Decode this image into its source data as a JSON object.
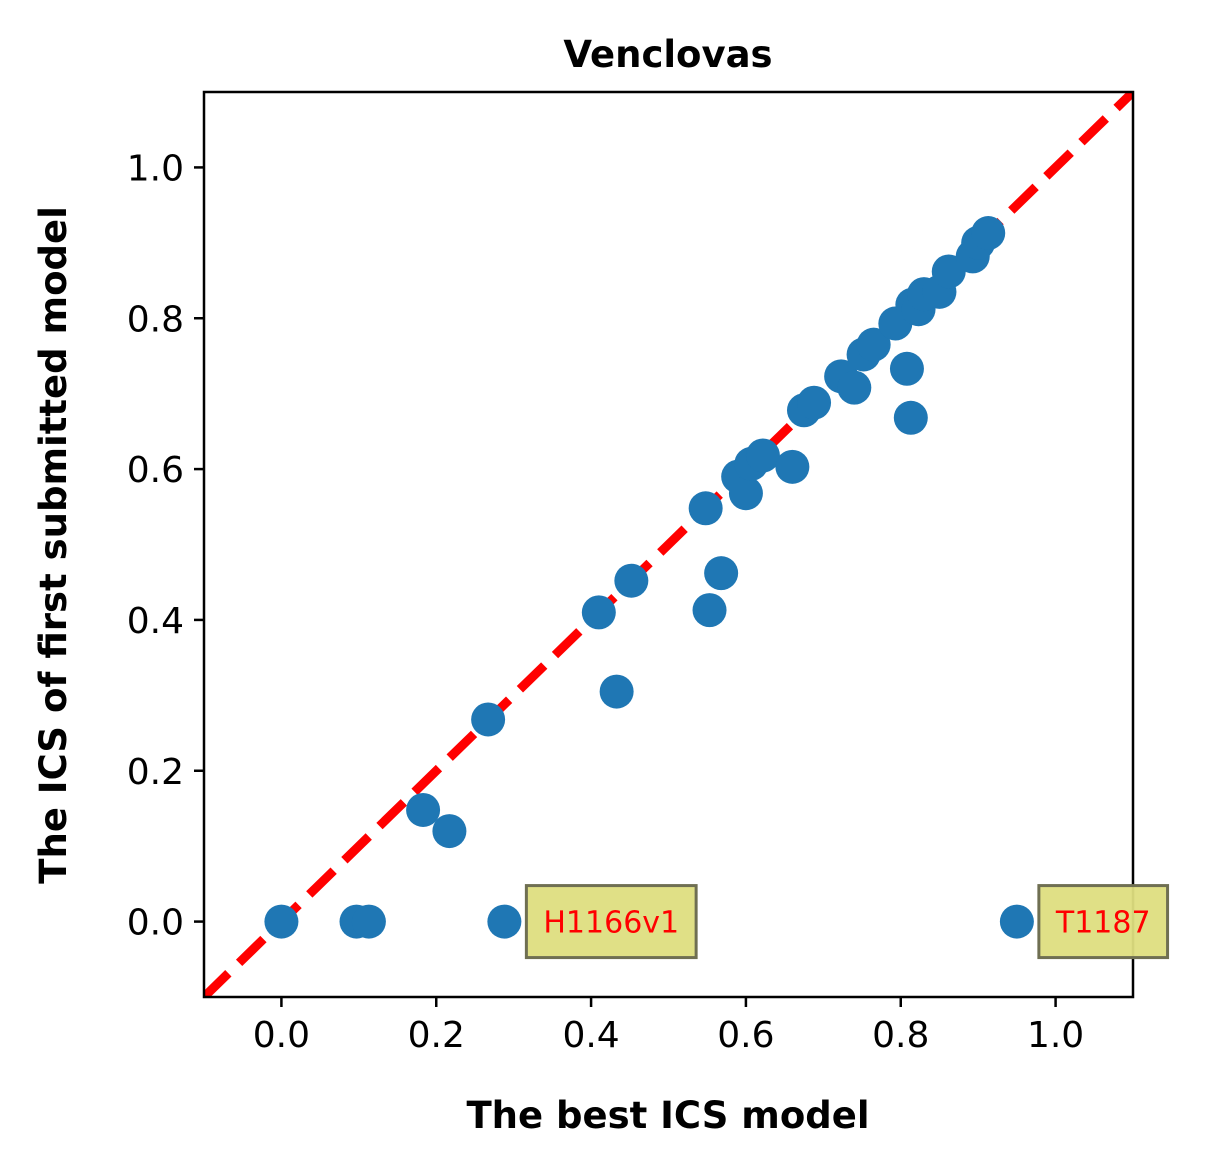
{
  "chart_data": {
    "type": "scatter",
    "title": "Venclovas",
    "xlabel": "The best ICS model",
    "ylabel": "The ICS of first submitted model",
    "xlim": [
      -0.1,
      1.1
    ],
    "ylim": [
      -0.1,
      1.1
    ],
    "xticks": [
      "0.0",
      "0.2",
      "0.4",
      "0.6",
      "0.8",
      "1.0"
    ],
    "yticks": [
      "0.0",
      "0.2",
      "0.4",
      "0.6",
      "0.8",
      "1.0"
    ],
    "grid": false,
    "colors": {
      "points": "#1f77b4",
      "reference_line": "#ff0000",
      "annotation_box": "#dede80",
      "annotation_text": "#ff0000"
    },
    "reference_line": {
      "style": "dashed",
      "from": [
        -0.1,
        -0.1
      ],
      "to": [
        1.1,
        1.1
      ]
    },
    "points": [
      {
        "x": 0.0,
        "y": 0.0
      },
      {
        "x": 0.097,
        "y": 0.0
      },
      {
        "x": 0.113,
        "y": 0.0
      },
      {
        "x": 0.183,
        "y": 0.148
      },
      {
        "x": 0.217,
        "y": 0.12
      },
      {
        "x": 0.267,
        "y": 0.268
      },
      {
        "x": 0.288,
        "y": 0.0
      },
      {
        "x": 0.41,
        "y": 0.41
      },
      {
        "x": 0.433,
        "y": 0.305
      },
      {
        "x": 0.452,
        "y": 0.452
      },
      {
        "x": 0.548,
        "y": 0.548
      },
      {
        "x": 0.553,
        "y": 0.413
      },
      {
        "x": 0.568,
        "y": 0.462
      },
      {
        "x": 0.59,
        "y": 0.59
      },
      {
        "x": 0.6,
        "y": 0.568
      },
      {
        "x": 0.607,
        "y": 0.607
      },
      {
        "x": 0.622,
        "y": 0.618
      },
      {
        "x": 0.66,
        "y": 0.603
      },
      {
        "x": 0.675,
        "y": 0.678
      },
      {
        "x": 0.688,
        "y": 0.688
      },
      {
        "x": 0.723,
        "y": 0.723
      },
      {
        "x": 0.74,
        "y": 0.708
      },
      {
        "x": 0.752,
        "y": 0.752
      },
      {
        "x": 0.765,
        "y": 0.765
      },
      {
        "x": 0.793,
        "y": 0.793
      },
      {
        "x": 0.808,
        "y": 0.733
      },
      {
        "x": 0.813,
        "y": 0.668
      },
      {
        "x": 0.815,
        "y": 0.818
      },
      {
        "x": 0.823,
        "y": 0.812
      },
      {
        "x": 0.83,
        "y": 0.832
      },
      {
        "x": 0.85,
        "y": 0.835
      },
      {
        "x": 0.862,
        "y": 0.862
      },
      {
        "x": 0.893,
        "y": 0.882
      },
      {
        "x": 0.9,
        "y": 0.9
      },
      {
        "x": 0.913,
        "y": 0.913
      },
      {
        "x": 0.95,
        "y": 0.0
      }
    ],
    "annotations": [
      {
        "text": "H1166v1",
        "x": 0.288,
        "y": 0.0
      },
      {
        "text": "T1187",
        "x": 0.95,
        "y": 0.0
      }
    ]
  }
}
